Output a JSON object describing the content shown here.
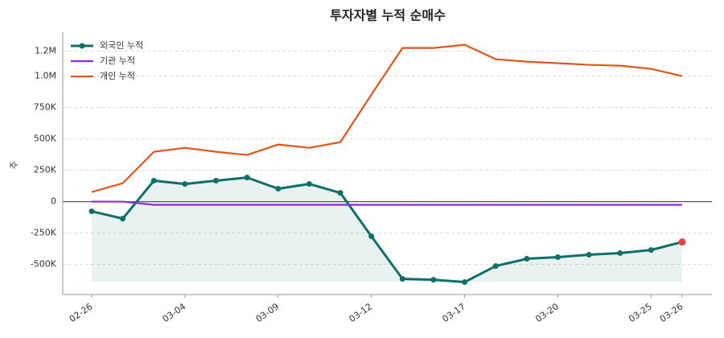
{
  "chart_data": {
    "type": "line",
    "title": "투자자별 누적 순매수",
    "ylabel": "주",
    "categories": [
      "02-26",
      null,
      null,
      "03-04",
      null,
      null,
      "03-09",
      null,
      null,
      "03-12",
      null,
      null,
      "03-17",
      null,
      null,
      "03-20",
      null,
      null,
      "03-25",
      "03-26"
    ],
    "series": [
      {
        "name": "외국인 누적",
        "color": "#0f7068",
        "markers": true,
        "fill": true,
        "highlight_last": "#e0474c",
        "values": [
          -77000,
          -135000,
          167000,
          141000,
          167000,
          192000,
          103000,
          141000,
          70000,
          -276000,
          -615000,
          -622000,
          -641000,
          -513000,
          -455000,
          -442000,
          -423000,
          -410000,
          -385000,
          -321000
        ]
      },
      {
        "name": "기관 누적",
        "color": "#8a2be2",
        "markers": false,
        "values": [
          0,
          0,
          -25000,
          -25000,
          -25000,
          -25000,
          -25000,
          -25000,
          -25000,
          -25000,
          -25000,
          -25000,
          -25000,
          -25000,
          -25000,
          -25000,
          -25000,
          -25000,
          -25000,
          -25000
        ]
      },
      {
        "name": "개인 누적",
        "color": "#e0561a",
        "markers": false,
        "values": [
          77000,
          147000,
          397000,
          429000,
          397000,
          372000,
          455000,
          429000,
          474000,
          853000,
          1224000,
          1224000,
          1250000,
          1135000,
          1115000,
          1103000,
          1090000,
          1083000,
          1058000,
          1000000
        ]
      }
    ],
    "ylim": [
      -740000,
      1350000
    ],
    "yticks": [
      {
        "value": -500000,
        "label": "-500K"
      },
      {
        "value": -250000,
        "label": "-250K"
      },
      0,
      {
        "value": 250000,
        "label": "250K"
      },
      {
        "value": 500000,
        "label": "500K"
      },
      {
        "value": 750000,
        "label": "750K"
      },
      {
        "value": 1000000,
        "label": "1.0M"
      },
      {
        "value": 1200000,
        "label": "1.2M"
      }
    ],
    "grid": true,
    "legend": "upper-left"
  }
}
